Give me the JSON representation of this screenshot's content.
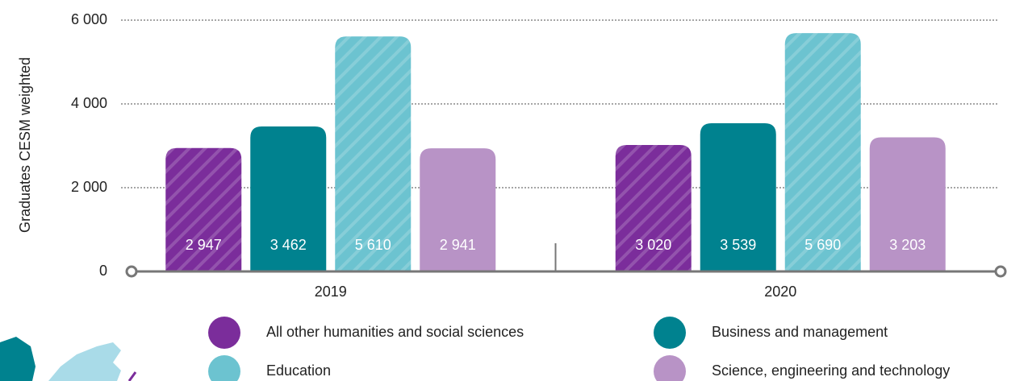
{
  "chart_data": {
    "type": "bar",
    "y_label": "Graduates CESM weighted",
    "categories": [
      "2019",
      "2020"
    ],
    "series": [
      {
        "name": "All other humanities and social sciences",
        "color": "#7b2d9b",
        "hatch": true,
        "values": [
          2947,
          3020
        ],
        "value_labels": [
          "2 947",
          "3 020"
        ]
      },
      {
        "name": "Business and management",
        "color": "#00828f",
        "hatch": false,
        "values": [
          3462,
          3539
        ],
        "value_labels": [
          "3 462",
          "3 539"
        ]
      },
      {
        "name": "Education",
        "color": "#6cc3d0",
        "hatch": true,
        "values": [
          5610,
          5690
        ],
        "value_labels": [
          "5 610",
          "5 690"
        ]
      },
      {
        "name": "Science, engineering and technology",
        "color": "#b893c6",
        "hatch": false,
        "values": [
          2941,
          3203
        ],
        "value_labels": [
          "2 941",
          "3 203"
        ]
      }
    ],
    "ylim": [
      0,
      6000
    ],
    "yticks": [
      0,
      {
        "value": 2000,
        "label": "2 000"
      },
      {
        "value": 4000,
        "label": "4 000"
      },
      {
        "value": 6000,
        "label": "6 000"
      }
    ],
    "grid": true
  }
}
